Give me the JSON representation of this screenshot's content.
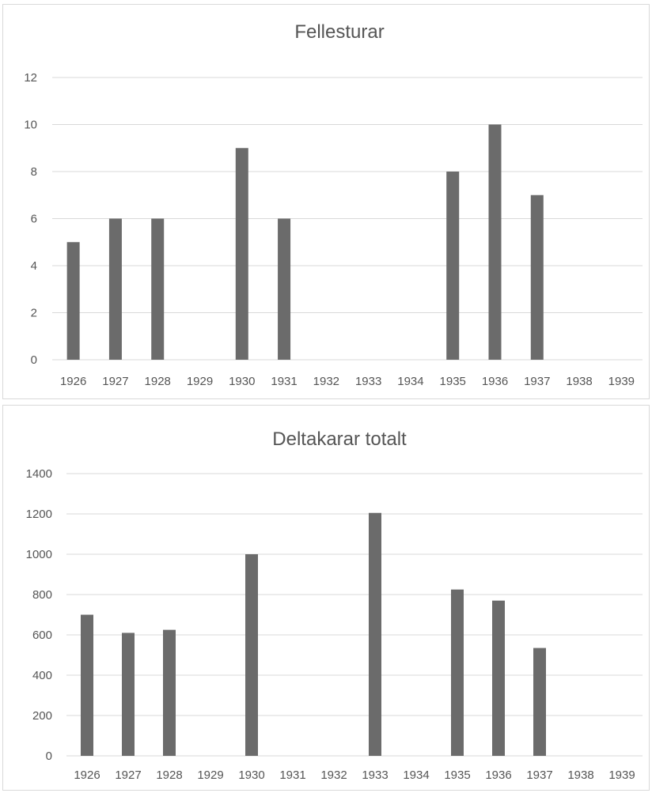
{
  "chart_data": [
    {
      "type": "bar",
      "title": "Fellesturar",
      "categories": [
        "1926",
        "1927",
        "1928",
        "1929",
        "1930",
        "1931",
        "1932",
        "1933",
        "1934",
        "1935",
        "1936",
        "1937",
        "1938",
        "1939"
      ],
      "values": [
        5,
        6,
        6,
        0,
        9,
        6,
        0,
        0,
        0,
        8,
        10,
        7,
        0,
        0
      ],
      "ylim": [
        0,
        12
      ],
      "yticks": [
        0,
        2,
        4,
        6,
        8,
        10,
        12
      ],
      "grid": true,
      "legend": "none",
      "colors": {
        "bar": "#6b6b6b",
        "grid": "#d9d9d9",
        "text": "#555555"
      }
    },
    {
      "type": "bar",
      "title": "Deltakarar totalt",
      "categories": [
        "1926",
        "1927",
        "1928",
        "1929",
        "1930",
        "1931",
        "1932",
        "1933",
        "1934",
        "1935",
        "1936",
        "1937",
        "1938",
        "1939"
      ],
      "values": [
        700,
        610,
        625,
        0,
        1000,
        0,
        0,
        1205,
        0,
        825,
        770,
        535,
        0,
        0
      ],
      "ylim": [
        0,
        1400
      ],
      "yticks": [
        0,
        200,
        400,
        600,
        800,
        1000,
        1200,
        1400
      ],
      "grid": true,
      "legend": "none",
      "colors": {
        "bar": "#555555",
        "grid": "#d9d9d9",
        "text": "#333333"
      }
    }
  ]
}
